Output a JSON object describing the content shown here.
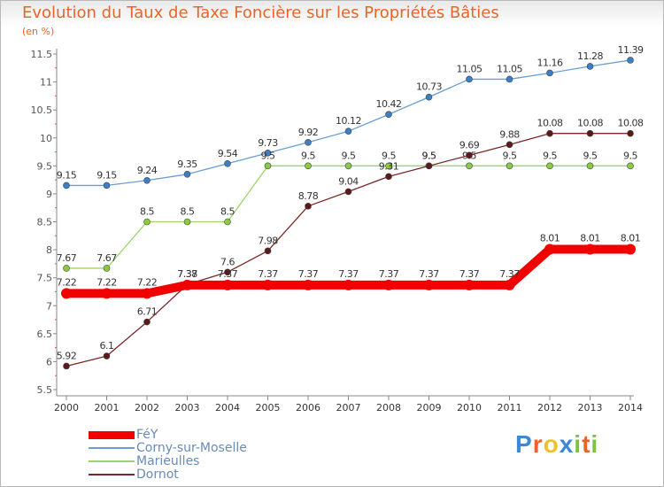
{
  "title": "Evolution du Taux de Taxe Foncière sur les Propriétés Bâties",
  "unit_label": "(en %)",
  "logo": {
    "text": "Proxiti",
    "colors": [
      "#3a88d6",
      "#e8652a",
      "#e8c32a",
      "#3a88d6",
      "#7dc242",
      "#e8652a",
      "#7dc242"
    ]
  },
  "chart_data": {
    "type": "line",
    "title": "Evolution du Taux de Taxe Foncière sur les Propriétés Bâties",
    "ylabel": "(en %)",
    "xlabel": "",
    "categories": [
      "2000",
      "2001",
      "2002",
      "2003",
      "2004",
      "2005",
      "2006",
      "2007",
      "2008",
      "2009",
      "2010",
      "2011",
      "2012",
      "2013",
      "2014"
    ],
    "ylim": [
      5.5,
      11.5
    ],
    "yticks": [
      "5.5",
      "6",
      "6.5",
      "7",
      "7.5",
      "8",
      "8.5",
      "9",
      "9.5",
      "10",
      "10.5",
      "11",
      "11.5"
    ],
    "series": [
      {
        "name": "Corny-sur-Moselle",
        "color": "#6a9ed3",
        "marker": "#3a7fc8",
        "style": "thin",
        "values": [
          9.15,
          9.15,
          9.24,
          9.35,
          9.54,
          9.73,
          9.92,
          10.12,
          10.42,
          10.73,
          11.05,
          11.05,
          11.16,
          11.28,
          11.39
        ],
        "labels": [
          "9.15",
          "9.15",
          "9.24",
          "9.35",
          "9.54",
          "9.73",
          "9.92",
          "10.12",
          "10.42",
          "10.73",
          "11.05",
          "11.05",
          "11.16",
          "11.28",
          "11.39"
        ]
      },
      {
        "name": "Marieulles",
        "color": "#9ed36a",
        "marker": "#8bcc3e",
        "style": "thin",
        "values": [
          7.67,
          7.67,
          8.5,
          8.5,
          8.5,
          9.5,
          9.5,
          9.5,
          9.5,
          9.5,
          9.5,
          9.5,
          9.5,
          9.5,
          9.5
        ],
        "labels": [
          "7.67",
          "7.67",
          "8.5",
          "8.5",
          "8.5",
          "9.5",
          "9.5",
          "9.5",
          "9.5",
          "9.5",
          "9.5",
          "9.5",
          "9.5",
          "9.5",
          "9.5"
        ]
      },
      {
        "name": "Dornot",
        "color": "#7a2828",
        "marker": "#5a1a1a",
        "style": "thin",
        "values": [
          5.92,
          6.1,
          6.71,
          7.38,
          7.6,
          7.98,
          8.78,
          9.04,
          9.31,
          9.5,
          9.69,
          9.88,
          10.08,
          10.08,
          10.08
        ],
        "labels": [
          "5.92",
          "6.1",
          "6.71",
          "7.38",
          "7.6",
          "7.98",
          "8.78",
          "9.04",
          "9.31",
          "9.5",
          "9.69",
          "9.88",
          "10.08",
          "10.08",
          "10.08"
        ]
      },
      {
        "name": "FéY",
        "color": "#f20000",
        "marker": "#f20000",
        "style": "thick",
        "values": [
          7.22,
          7.22,
          7.22,
          7.37,
          7.37,
          7.37,
          7.37,
          7.37,
          7.37,
          7.37,
          7.37,
          7.37,
          8.01,
          8.01,
          8.01
        ],
        "labels": [
          "7.22",
          "7.22",
          "7.22",
          "7.37",
          "7.37",
          "7.37",
          "7.37",
          "7.37",
          "7.37",
          "7.37",
          "7.37",
          "7.37",
          "8.01",
          "8.01",
          "8.01"
        ]
      }
    ],
    "legend": [
      {
        "name": "FéY",
        "color": "#f20000",
        "style": "thick"
      },
      {
        "name": "Corny-sur-Moselle",
        "color": "#6a9ed3",
        "style": "thin"
      },
      {
        "name": "Marieulles",
        "color": "#9ed36a",
        "style": "thin"
      },
      {
        "name": "Dornot",
        "color": "#7a2828",
        "style": "thin"
      }
    ],
    "legend_position": "bottom-left",
    "grid": false
  }
}
